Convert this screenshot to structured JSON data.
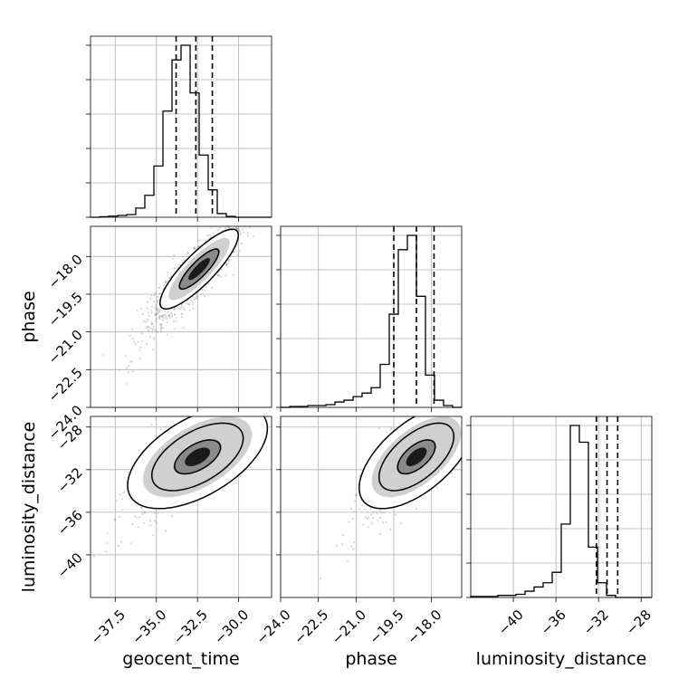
{
  "chart_data": {
    "type": "corner",
    "parameters": [
      {
        "name": "geocent_time",
        "label": "geocent_time",
        "range": [
          -39.0,
          -28.0
        ],
        "ticks": [
          -37.5,
          -35.0,
          -32.5,
          -30.0
        ],
        "tick_labels": [
          "−37.5",
          "−35.0",
          "−32.5",
          "−30.0"
        ]
      },
      {
        "name": "phase",
        "label": "phase",
        "range": [
          -24.0,
          -16.8
        ],
        "ticks": [
          -24.0,
          -22.5,
          -21.0,
          -19.5,
          -18.0
        ],
        "tick_labels": [
          "−24.0",
          "−22.5",
          "−21.0",
          "−19.5",
          "−18.0"
        ]
      },
      {
        "name": "luminosity_distance",
        "label": "luminosity_distance",
        "range": [
          -44.0,
          -27.0
        ],
        "ticks": [
          -40,
          -36,
          -32,
          -28
        ],
        "tick_labels": [
          "−40",
          "−36",
          "−32",
          "−28"
        ]
      }
    ],
    "histograms": [
      {
        "param": "geocent_time",
        "edges": [
          -39.0,
          -38.45,
          -37.9,
          -37.35,
          -36.8,
          -36.25,
          -35.7,
          -35.15,
          -34.6,
          -34.05,
          -33.5,
          -32.95,
          -32.4,
          -31.85,
          -31.3,
          -30.75,
          -30.2,
          -29.65,
          -29.1,
          -28.55,
          -28.0
        ],
        "counts": [
          0,
          0.003,
          0.006,
          0.01,
          0.015,
          0.05,
          0.12,
          0.28,
          0.58,
          0.86,
          0.94,
          0.68,
          0.34,
          0.15,
          0.02,
          0.005,
          0,
          0,
          0,
          0
        ],
        "quantiles": [
          -33.8,
          -32.6,
          -31.6
        ]
      },
      {
        "param": "phase",
        "edges": [
          -24.0,
          -23.64,
          -23.28,
          -22.92,
          -22.56,
          -22.2,
          -21.84,
          -21.48,
          -21.12,
          -20.76,
          -20.4,
          -20.04,
          -19.68,
          -19.32,
          -18.96,
          -18.6,
          -18.24,
          -17.88,
          -17.52,
          -17.16,
          -16.8
        ],
        "counts": [
          0,
          0.005,
          0.005,
          0.01,
          0.01,
          0.015,
          0.03,
          0.04,
          0.06,
          0.08,
          0.11,
          0.24,
          0.52,
          0.88,
          0.96,
          0.62,
          0.18,
          0.04,
          0.01,
          0
        ],
        "quantiles": [
          -19.5,
          -18.6,
          -17.9
        ]
      },
      {
        "param": "luminosity_distance",
        "edges": [
          -44.0,
          -43.15,
          -42.3,
          -41.45,
          -40.6,
          -39.75,
          -38.9,
          -38.05,
          -37.2,
          -36.35,
          -35.5,
          -34.65,
          -33.8,
          -32.95,
          -32.1,
          -31.25,
          -30.4,
          -29.55,
          -28.7,
          -27.85,
          -27.0
        ],
        "counts": [
          0.005,
          0.005,
          0.005,
          0.01,
          0.01,
          0.015,
          0.03,
          0.05,
          0.07,
          0.12,
          0.35,
          0.82,
          0.74,
          0.24,
          0.07,
          0.01,
          0,
          0,
          0,
          0
        ],
        "quantiles": [
          -32.2,
          -31.2,
          -30.2
        ]
      }
    ],
    "scatter_2d": [
      {
        "x": "geocent_time",
        "y": "phase",
        "mean": [
          -32.4,
          -18.5
        ],
        "std": [
          1.2,
          0.8
        ],
        "correlation": 0.85,
        "contour_levels": [
          0.39,
          0.86
        ]
      },
      {
        "x": "geocent_time",
        "y": "luminosity_distance",
        "mean": [
          -32.5,
          -30.8
        ],
        "std": [
          1.4,
          1.6
        ],
        "correlation": 0.55,
        "contour_levels": [
          0.39,
          0.86,
          0.99
        ]
      },
      {
        "x": "phase",
        "y": "luminosity_distance",
        "mean": [
          -18.6,
          -30.8
        ],
        "std": [
          0.75,
          1.6
        ],
        "correlation": 0.6,
        "contour_levels": [
          0.39,
          0.86,
          0.99
        ]
      }
    ],
    "grid": true,
    "colors": {
      "line": "#000000",
      "points": "#6e6e6e",
      "grid": "#b0b0b0"
    }
  }
}
